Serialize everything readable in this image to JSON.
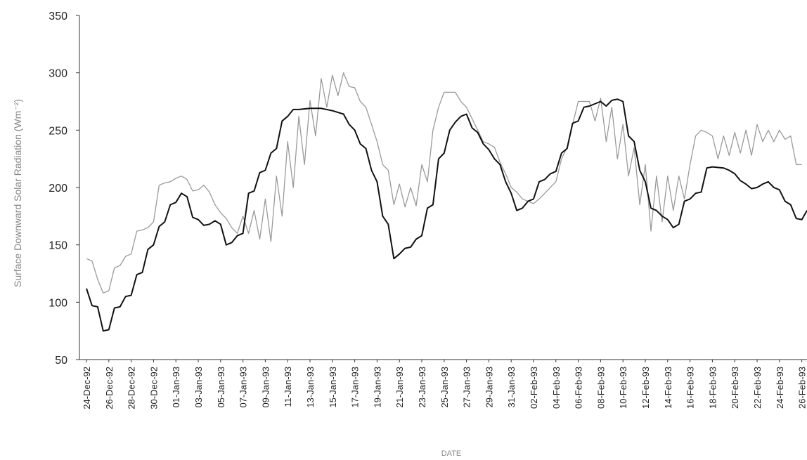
{
  "chart_data": {
    "type": "line",
    "xlabel": "DATE",
    "ylabel": "Surface Downward Solar Radiation (Wm⁻²)",
    "ylim": [
      50,
      350
    ],
    "yticks": [
      50,
      100,
      150,
      200,
      250,
      300,
      350
    ],
    "grid": false,
    "legend": "none",
    "start_date": "24-Dec-92",
    "x_tick_labels": [
      "24-Dec-92",
      "26-Dec-92",
      "28-Dec-92",
      "30-Dec-92",
      "01-Jan-93",
      "03-Jan-93",
      "05-Jan-93",
      "07-Jan-93",
      "09-Jan-93",
      "11-Jan-93",
      "13-Jan-93",
      "15-Jan-93",
      "17-Jan-93",
      "19-Jan-93",
      "21-Jan-93",
      "23-Jan-93",
      "25-Jan-93",
      "27-Jan-93",
      "29-Jan-93",
      "31-Jan-93",
      "02-Feb-93",
      "04-Feb-93",
      "06-Feb-93",
      "08-Feb-93",
      "10-Feb-93",
      "12-Feb-93",
      "14-Feb-93",
      "16-Feb-93",
      "18-Feb-93",
      "20-Feb-93",
      "22-Feb-93",
      "24-Feb-93",
      "26-Feb-93"
    ],
    "series": [
      {
        "color": "#111111",
        "points": [
          [
            "24-Dec-92",
            112
          ],
          [
            "24-Dec-92",
            97
          ],
          [
            "25-Dec-92",
            96
          ],
          [
            "25-Dec-92",
            75
          ],
          [
            "26-Dec-92",
            76
          ],
          [
            "26-Dec-92",
            95
          ],
          [
            "27-Dec-92",
            96
          ],
          [
            "27-Dec-92",
            105
          ],
          [
            "28-Dec-92",
            106
          ],
          [
            "28-Dec-92",
            124
          ],
          [
            "29-Dec-92",
            126
          ],
          [
            "29-Dec-92",
            146
          ],
          [
            "30-Dec-92",
            150
          ],
          [
            "30-Dec-92",
            166
          ],
          [
            "31-Dec-92",
            170
          ],
          [
            "31-Dec-92",
            185
          ],
          [
            "01-Jan-93",
            187
          ],
          [
            "01-Jan-93",
            195
          ],
          [
            "02-Jan-93",
            192
          ],
          [
            "02-Jan-93",
            174
          ],
          [
            "03-Jan-93",
            172
          ],
          [
            "03-Jan-93",
            167
          ],
          [
            "04-Jan-93",
            168
          ],
          [
            "04-Jan-93",
            171
          ],
          [
            "05-Jan-93",
            168
          ],
          [
            "05-Jan-93",
            150
          ],
          [
            "06-Jan-93",
            152
          ],
          [
            "06-Jan-93",
            158
          ],
          [
            "07-Jan-93",
            160
          ],
          [
            "07-Jan-93",
            195
          ],
          [
            "08-Jan-93",
            197
          ],
          [
            "08-Jan-93",
            213
          ],
          [
            "09-Jan-93",
            215
          ],
          [
            "09-Jan-93",
            230
          ],
          [
            "10-Jan-93",
            234
          ],
          [
            "10-Jan-93",
            258
          ],
          [
            "11-Jan-93",
            262
          ],
          [
            "11-Jan-93",
            268
          ],
          [
            "12-Jan-93",
            268
          ],
          [
            "13-Jan-93",
            269
          ],
          [
            "14-Jan-93",
            269
          ],
          [
            "15-Jan-93",
            267
          ],
          [
            "16-Jan-93",
            264
          ],
          [
            "16-Jan-93",
            255
          ],
          [
            "17-Jan-93",
            250
          ],
          [
            "17-Jan-93",
            238
          ],
          [
            "18-Jan-93",
            234
          ],
          [
            "18-Jan-93",
            215
          ],
          [
            "19-Jan-93",
            205
          ],
          [
            "19-Jan-93",
            175
          ],
          [
            "20-Jan-93",
            168
          ],
          [
            "20-Jan-93",
            138
          ],
          [
            "21-Jan-93",
            142
          ],
          [
            "21-Jan-93",
            147
          ],
          [
            "22-Jan-93",
            148
          ],
          [
            "22-Jan-93",
            155
          ],
          [
            "23-Jan-93",
            158
          ],
          [
            "23-Jan-93",
            182
          ],
          [
            "24-Jan-93",
            185
          ],
          [
            "24-Jan-93",
            225
          ],
          [
            "25-Jan-93",
            230
          ],
          [
            "25-Jan-93",
            250
          ],
          [
            "26-Jan-93",
            257
          ],
          [
            "26-Jan-93",
            262
          ],
          [
            "27-Jan-93",
            264
          ],
          [
            "27-Jan-93",
            252
          ],
          [
            "28-Jan-93",
            248
          ],
          [
            "28-Jan-93",
            238
          ],
          [
            "29-Jan-93",
            233
          ],
          [
            "29-Jan-93",
            225
          ],
          [
            "30-Jan-93",
            220
          ],
          [
            "30-Jan-93",
            205
          ],
          [
            "31-Jan-93",
            195
          ],
          [
            "31-Jan-93",
            180
          ],
          [
            "01-Feb-93",
            182
          ],
          [
            "01-Feb-93",
            188
          ],
          [
            "02-Feb-93",
            190
          ],
          [
            "02-Feb-93",
            205
          ],
          [
            "03-Feb-93",
            207
          ],
          [
            "03-Feb-93",
            212
          ],
          [
            "04-Feb-93",
            214
          ],
          [
            "04-Feb-93",
            230
          ],
          [
            "05-Feb-93",
            234
          ],
          [
            "05-Feb-93",
            256
          ],
          [
            "06-Feb-93",
            258
          ],
          [
            "06-Feb-93",
            270
          ],
          [
            "07-Feb-93",
            271
          ],
          [
            "08-Feb-93",
            275
          ],
          [
            "08-Feb-93",
            271
          ],
          [
            "09-Feb-93",
            276
          ],
          [
            "09-Feb-93",
            277
          ],
          [
            "10-Feb-93",
            275
          ],
          [
            "10-Feb-93",
            245
          ],
          [
            "11-Feb-93",
            240
          ],
          [
            "11-Feb-93",
            215
          ],
          [
            "12-Feb-93",
            205
          ],
          [
            "12-Feb-93",
            182
          ],
          [
            "13-Feb-93",
            180
          ],
          [
            "13-Feb-93",
            175
          ],
          [
            "14-Feb-93",
            172
          ],
          [
            "14-Feb-93",
            165
          ],
          [
            "15-Feb-93",
            168
          ],
          [
            "15-Feb-93",
            188
          ],
          [
            "16-Feb-93",
            190
          ],
          [
            "16-Feb-93",
            195
          ],
          [
            "17-Feb-93",
            196
          ],
          [
            "17-Feb-93",
            217
          ],
          [
            "18-Feb-93",
            218
          ],
          [
            "19-Feb-93",
            217
          ],
          [
            "19-Feb-93",
            215
          ],
          [
            "20-Feb-93",
            212
          ],
          [
            "20-Feb-93",
            206
          ],
          [
            "21-Feb-93",
            203
          ],
          [
            "21-Feb-93",
            199
          ],
          [
            "22-Feb-93",
            200
          ],
          [
            "22-Feb-93",
            203
          ],
          [
            "23-Feb-93",
            205
          ],
          [
            "23-Feb-93",
            200
          ],
          [
            "24-Feb-93",
            198
          ],
          [
            "24-Feb-93",
            188
          ],
          [
            "25-Feb-93",
            185
          ],
          [
            "25-Feb-93",
            173
          ],
          [
            "26-Feb-93",
            172
          ],
          [
            "26-Feb-93",
            180
          ]
        ]
      },
      {
        "color": "#9a9a9a",
        "points": [
          [
            "24-Dec-92",
            138
          ],
          [
            "24-Dec-92",
            136
          ],
          [
            "25-Dec-92",
            120
          ],
          [
            "25-Dec-92",
            108
          ],
          [
            "26-Dec-92",
            110
          ],
          [
            "26-Dec-92",
            130
          ],
          [
            "27-Dec-92",
            132
          ],
          [
            "27-Dec-92",
            140
          ],
          [
            "28-Dec-92",
            142
          ],
          [
            "28-Dec-92",
            162
          ],
          [
            "29-Dec-92",
            163
          ],
          [
            "29-Dec-92",
            165
          ],
          [
            "30-Dec-92",
            170
          ],
          [
            "30-Dec-92",
            202
          ],
          [
            "31-Dec-92",
            204
          ],
          [
            "31-Dec-92",
            205
          ],
          [
            "01-Jan-93",
            208
          ],
          [
            "01-Jan-93",
            210
          ],
          [
            "02-Jan-93",
            207
          ],
          [
            "02-Jan-93",
            197
          ],
          [
            "03-Jan-93",
            198
          ],
          [
            "03-Jan-93",
            202
          ],
          [
            "04-Jan-93",
            196
          ],
          [
            "04-Jan-93",
            185
          ],
          [
            "05-Jan-93",
            178
          ],
          [
            "05-Jan-93",
            173
          ],
          [
            "06-Jan-93",
            165
          ],
          [
            "06-Jan-93",
            160
          ],
          [
            "07-Jan-93",
            175
          ],
          [
            "07-Jan-93",
            160
          ],
          [
            "08-Jan-93",
            180
          ],
          [
            "08-Jan-93",
            155
          ],
          [
            "09-Jan-93",
            190
          ],
          [
            "09-Jan-93",
            153
          ],
          [
            "10-Jan-93",
            210
          ],
          [
            "10-Jan-93",
            175
          ],
          [
            "11-Jan-93",
            240
          ],
          [
            "11-Jan-93",
            200
          ],
          [
            "12-Jan-93",
            262
          ],
          [
            "12-Jan-93",
            220
          ],
          [
            "13-Jan-93",
            276
          ],
          [
            "13-Jan-93",
            245
          ],
          [
            "14-Jan-93",
            295
          ],
          [
            "14-Jan-93",
            270
          ],
          [
            "15-Jan-93",
            298
          ],
          [
            "15-Jan-93",
            280
          ],
          [
            "16-Jan-93",
            300
          ],
          [
            "16-Jan-93",
            288
          ],
          [
            "17-Jan-93",
            287
          ],
          [
            "17-Jan-93",
            275
          ],
          [
            "18-Jan-93",
            270
          ],
          [
            "18-Jan-93",
            255
          ],
          [
            "19-Jan-93",
            240
          ],
          [
            "19-Jan-93",
            220
          ],
          [
            "20-Jan-93",
            215
          ],
          [
            "20-Jan-93",
            185
          ],
          [
            "21-Jan-93",
            203
          ],
          [
            "21-Jan-93",
            183
          ],
          [
            "22-Jan-93",
            200
          ],
          [
            "22-Jan-93",
            184
          ],
          [
            "23-Jan-93",
            220
          ],
          [
            "23-Jan-93",
            205
          ],
          [
            "24-Jan-93",
            250
          ],
          [
            "24-Jan-93",
            270
          ],
          [
            "25-Jan-93",
            283
          ],
          [
            "26-Jan-93",
            283
          ],
          [
            "26-Jan-93",
            275
          ],
          [
            "27-Jan-93",
            270
          ],
          [
            "27-Jan-93",
            260
          ],
          [
            "28-Jan-93",
            250
          ],
          [
            "28-Jan-93",
            240
          ],
          [
            "29-Jan-93",
            238
          ],
          [
            "29-Jan-93",
            235
          ],
          [
            "30-Jan-93",
            222
          ],
          [
            "30-Jan-93",
            212
          ],
          [
            "31-Jan-93",
            200
          ],
          [
            "31-Jan-93",
            196
          ],
          [
            "01-Feb-93",
            190
          ],
          [
            "02-Feb-93",
            186
          ],
          [
            "02-Feb-93",
            190
          ],
          [
            "03-Feb-93",
            195
          ],
          [
            "04-Feb-93",
            205
          ],
          [
            "04-Feb-93",
            225
          ],
          [
            "05-Feb-93",
            235
          ],
          [
            "05-Feb-93",
            255
          ],
          [
            "06-Feb-93",
            275
          ],
          [
            "07-Feb-93",
            275
          ],
          [
            "07-Feb-93",
            258
          ],
          [
            "08-Feb-93",
            278
          ],
          [
            "08-Feb-93",
            240
          ],
          [
            "09-Feb-93",
            270
          ],
          [
            "09-Feb-93",
            225
          ],
          [
            "10-Feb-93",
            255
          ],
          [
            "10-Feb-93",
            210
          ],
          [
            "11-Feb-93",
            235
          ],
          [
            "11-Feb-93",
            185
          ],
          [
            "12-Feb-93",
            220
          ],
          [
            "12-Feb-93",
            162
          ],
          [
            "13-Feb-93",
            210
          ],
          [
            "13-Feb-93",
            170
          ],
          [
            "14-Feb-93",
            210
          ],
          [
            "14-Feb-93",
            180
          ],
          [
            "15-Feb-93",
            210
          ],
          [
            "15-Feb-93",
            190
          ],
          [
            "16-Feb-93",
            220
          ],
          [
            "16-Feb-93",
            245
          ],
          [
            "17-Feb-93",
            250
          ],
          [
            "17-Feb-93",
            248
          ],
          [
            "18-Feb-93",
            245
          ],
          [
            "18-Feb-93",
            225
          ],
          [
            "19-Feb-93",
            245
          ],
          [
            "19-Feb-93",
            228
          ],
          [
            "20-Feb-93",
            248
          ],
          [
            "20-Feb-93",
            230
          ],
          [
            "21-Feb-93",
            250
          ],
          [
            "21-Feb-93",
            228
          ],
          [
            "22-Feb-93",
            255
          ],
          [
            "22-Feb-93",
            240
          ],
          [
            "23-Feb-93",
            250
          ],
          [
            "23-Feb-93",
            240
          ],
          [
            "24-Feb-93",
            250
          ],
          [
            "24-Feb-93",
            242
          ],
          [
            "25-Feb-93",
            245
          ],
          [
            "25-Feb-93",
            220
          ],
          [
            "26-Feb-93",
            220
          ]
        ]
      }
    ]
  }
}
